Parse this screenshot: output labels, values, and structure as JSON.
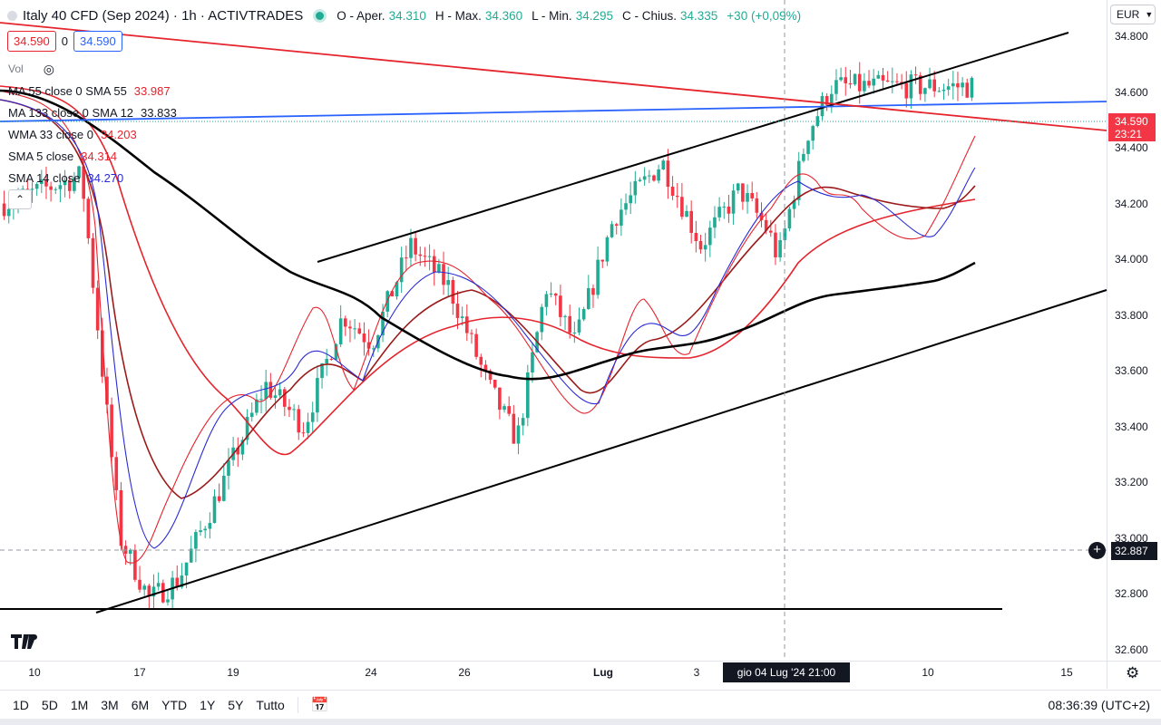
{
  "header": {
    "symbol_title": "Italy 40 CFD (Sep 2024) · 1h · ACTIVTRADES",
    "ohlc": {
      "open_label": "O - Aper.",
      "open": "34.310",
      "high_label": "H - Max.",
      "high": "34.360",
      "low_label": "L - Min.",
      "low": "34.295",
      "close_label": "C - Chius.",
      "close": "34.335",
      "change": "+30 (+0,09%)"
    }
  },
  "trade": {
    "sell_price": "34.590",
    "spread": "0",
    "buy_price": "34.590"
  },
  "legend": {
    "volume_label": "Vol",
    "indicators": [
      {
        "label": "MA 55 close 0 SMA 55",
        "value": "33.987",
        "color": "#e5242d"
      },
      {
        "label": "MA 133 close 0 SMA 12",
        "value": "33.833",
        "color": "#131722"
      },
      {
        "label": "WMA 33 close 0",
        "value": "34.203",
        "color": "#e5242d"
      },
      {
        "label": "SMA 5 close",
        "value": "34.314",
        "color": "#e5242d"
      },
      {
        "label": "SMA 14 close",
        "value": "34.270",
        "color": "#2a2ad4"
      }
    ],
    "collapse_icon": "chevron-up-icon"
  },
  "currency": "EUR",
  "price_scale": {
    "ticks": [
      "34.800",
      "34.600",
      "34.400",
      "34.200",
      "34.000",
      "33.800",
      "33.600",
      "33.400",
      "33.200",
      "33.000",
      "32.800",
      "32.600"
    ],
    "last_price": "34.590",
    "countdown": "23:21",
    "crosshair_price": "32.887"
  },
  "time_scale": {
    "ticks": [
      {
        "label": "10",
        "bold": false
      },
      {
        "label": "17",
        "bold": false
      },
      {
        "label": "19",
        "bold": false
      },
      {
        "label": "24",
        "bold": false
      },
      {
        "label": "26",
        "bold": false
      },
      {
        "label": "Lug",
        "bold": true
      },
      {
        "label": "3",
        "bold": false
      },
      {
        "label": "10",
        "bold": false
      },
      {
        "label": "15",
        "bold": false
      }
    ],
    "crosshair_date": "gio 04 Lug '24   21:00"
  },
  "bottom_toolbar": {
    "ranges": [
      "1D",
      "5D",
      "1M",
      "3M",
      "6M",
      "YTD",
      "1Y",
      "5Y",
      "Tutto"
    ],
    "clock": "08:36:39 (UTC+2)"
  },
  "colors": {
    "up": "#22ab94",
    "down": "#f23645",
    "red_line": "#e5242d",
    "blue_line": "#2962ff",
    "black_line": "#000000"
  },
  "chart_data": {
    "type": "candlestick",
    "title": "Italy 40 CFD (Sep 2024) · 1h · ACTIVTRADES",
    "ylim": [
      32.56,
      34.93
    ],
    "x_ticks": [
      "10",
      "17",
      "19",
      "24",
      "26",
      "Lug",
      "3",
      "10",
      "15"
    ],
    "y_ticks": [
      32.6,
      32.8,
      33.0,
      33.2,
      33.4,
      33.6,
      33.8,
      34.0,
      34.2,
      34.4,
      34.6,
      34.8
    ],
    "close_path": [
      [
        0,
        34.2
      ],
      [
        0.08,
        34.3
      ],
      [
        0.12,
        33.0
      ],
      [
        0.15,
        32.78
      ],
      [
        0.18,
        32.85
      ],
      [
        0.22,
        33.15
      ],
      [
        0.27,
        33.55
      ],
      [
        0.31,
        33.4
      ],
      [
        0.35,
        33.8
      ],
      [
        0.38,
        33.7
      ],
      [
        0.42,
        34.05
      ],
      [
        0.46,
        33.9
      ],
      [
        0.5,
        33.55
      ],
      [
        0.53,
        33.35
      ],
      [
        0.56,
        33.9
      ],
      [
        0.59,
        33.7
      ],
      [
        0.63,
        34.15
      ],
      [
        0.68,
        34.35
      ],
      [
        0.72,
        34.05
      ],
      [
        0.76,
        34.25
      ],
      [
        0.79,
        34.1
      ],
      [
        0.8,
        34.0
      ],
      [
        0.83,
        34.45
      ],
      [
        0.855,
        34.62
      ]
    ],
    "series": [
      {
        "name": "MA 55 close 0 SMA 55",
        "value": 33.987
      },
      {
        "name": "MA 133 close 0 SMA 12",
        "value": 33.833
      },
      {
        "name": "WMA 33 close 0",
        "value": 34.203
      },
      {
        "name": "SMA 5 close",
        "value": 34.314
      },
      {
        "name": "SMA 14 close",
        "value": 34.27
      }
    ],
    "last": 34.59,
    "crosshair": {
      "price": 32.887,
      "time": "gio 04 Lug '24 21:00"
    }
  }
}
